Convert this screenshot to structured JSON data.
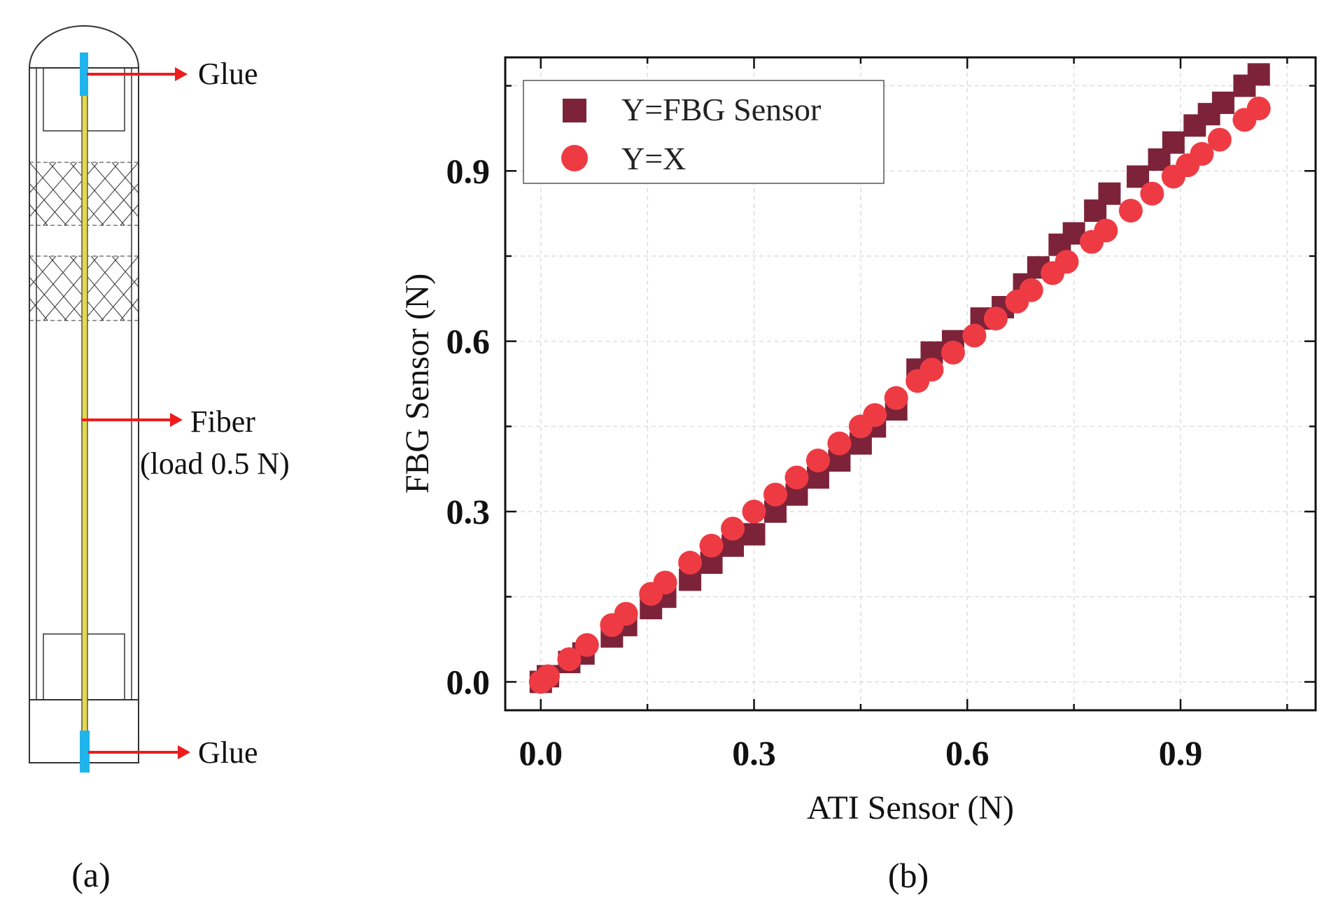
{
  "panel_a": {
    "label": "(a)",
    "annotations": {
      "glue_top": "Glue",
      "fiber": "Fiber",
      "fiber_load": "(load 0.5 N)",
      "glue_bottom": "Glue"
    },
    "colors": {
      "glue": "#1fb4ec",
      "fiber": "#e4d94c",
      "arrow": "#ee1c1c",
      "outline": "#333333"
    }
  },
  "panel_b": {
    "label": "(b)"
  },
  "chart_data": {
    "type": "scatter",
    "title": "",
    "xlabel": "ATI Sensor (N)",
    "ylabel": "FBG Sensor (N)",
    "xlim": [
      -0.05,
      1.09
    ],
    "ylim": [
      -0.05,
      1.1
    ],
    "xticks": [
      0.0,
      0.3,
      0.6,
      0.9
    ],
    "yticks": [
      0.0,
      0.3,
      0.6,
      0.9
    ],
    "xtick_labels": [
      "0.0",
      "0.3",
      "0.6",
      "0.9"
    ],
    "ytick_labels": [
      "0.0",
      "0.3",
      "0.6",
      "0.9"
    ],
    "grid": true,
    "legend_position": "top-left",
    "series": [
      {
        "name": "Y=FBG Sensor",
        "marker": "square",
        "color": "#7d2339",
        "x": [
          0.0,
          0.01,
          0.04,
          0.06,
          0.1,
          0.12,
          0.155,
          0.175,
          0.21,
          0.24,
          0.27,
          0.3,
          0.33,
          0.36,
          0.39,
          0.42,
          0.45,
          0.47,
          0.5,
          0.53,
          0.55,
          0.58,
          0.62,
          0.65,
          0.68,
          0.7,
          0.73,
          0.75,
          0.78,
          0.8,
          0.84,
          0.87,
          0.89,
          0.92,
          0.94,
          0.96,
          0.99,
          1.01
        ],
        "y": [
          0.0,
          0.01,
          0.035,
          0.05,
          0.08,
          0.1,
          0.13,
          0.15,
          0.18,
          0.21,
          0.24,
          0.26,
          0.3,
          0.33,
          0.36,
          0.39,
          0.42,
          0.45,
          0.48,
          0.55,
          0.58,
          0.6,
          0.64,
          0.66,
          0.7,
          0.73,
          0.77,
          0.79,
          0.83,
          0.86,
          0.89,
          0.92,
          0.95,
          0.98,
          1.0,
          1.02,
          1.05,
          1.07
        ]
      },
      {
        "name": "Y=X",
        "marker": "circle",
        "color": "#ee3b43",
        "x": [
          0.0,
          0.01,
          0.04,
          0.065,
          0.1,
          0.12,
          0.155,
          0.175,
          0.21,
          0.24,
          0.27,
          0.3,
          0.33,
          0.36,
          0.39,
          0.42,
          0.45,
          0.47,
          0.5,
          0.53,
          0.55,
          0.58,
          0.61,
          0.64,
          0.67,
          0.69,
          0.72,
          0.74,
          0.775,
          0.795,
          0.83,
          0.86,
          0.89,
          0.91,
          0.93,
          0.955,
          0.99,
          1.01
        ],
        "y": [
          0.0,
          0.01,
          0.04,
          0.065,
          0.1,
          0.12,
          0.155,
          0.175,
          0.21,
          0.24,
          0.27,
          0.3,
          0.33,
          0.36,
          0.39,
          0.42,
          0.45,
          0.47,
          0.5,
          0.53,
          0.55,
          0.58,
          0.61,
          0.64,
          0.67,
          0.69,
          0.72,
          0.74,
          0.775,
          0.795,
          0.83,
          0.86,
          0.89,
          0.91,
          0.93,
          0.955,
          0.99,
          1.01
        ]
      }
    ]
  }
}
